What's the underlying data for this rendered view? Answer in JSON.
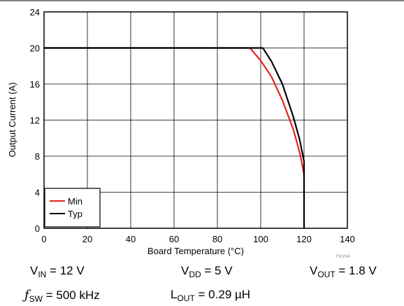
{
  "chart_data": {
    "type": "line",
    "title": "",
    "xlabel": "Board Temperature (°C)",
    "ylabel": "Output Current (A)",
    "xlim": [
      0,
      140
    ],
    "ylim": [
      0,
      24
    ],
    "x_ticks": [
      0,
      20,
      40,
      60,
      80,
      100,
      120,
      140
    ],
    "y_ticks": [
      0,
      4,
      8,
      12,
      16,
      20,
      24
    ],
    "grid": true,
    "legend_position": "bottom-left",
    "figure_id": "D006",
    "series": [
      {
        "name": "Min",
        "color": "#e8231d",
        "points": [
          [
            0,
            20
          ],
          [
            95,
            20
          ],
          [
            100,
            18.6
          ],
          [
            105,
            16.8
          ],
          [
            110,
            14.2
          ],
          [
            115,
            11.0
          ],
          [
            118,
            8.4
          ],
          [
            120,
            6
          ]
        ]
      },
      {
        "name": "Typ",
        "color": "#000000",
        "points": [
          [
            0,
            20
          ],
          [
            101,
            20
          ],
          [
            105,
            18.5
          ],
          [
            110,
            16.0
          ],
          [
            115,
            12.4
          ],
          [
            118,
            9.8
          ],
          [
            120,
            7.4
          ],
          [
            120,
            0
          ]
        ]
      }
    ]
  },
  "conditions": {
    "vin_sym": "V",
    "vin_sub": "IN",
    "vin_val": " = 12 V",
    "vdd_sym": "V",
    "vdd_sub": "DD",
    "vdd_val": " = 5 V",
    "vout_sym": "V",
    "vout_sub": "OUT",
    "vout_val": " = 1.8 V",
    "fsw_sym": "ƒ",
    "fsw_sub": "SW",
    "fsw_val": " = 500 kHz",
    "lout_sym": "L",
    "lout_sub": "OUT",
    "lout_val": " = 0.29 µH"
  }
}
